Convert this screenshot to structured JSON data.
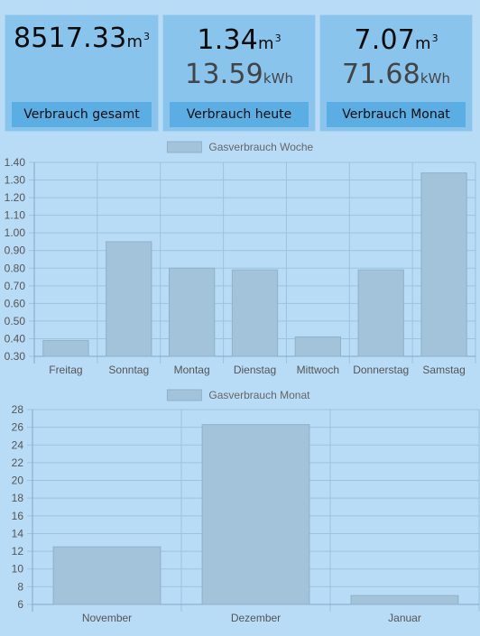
{
  "cards": [
    {
      "value": "8517.33",
      "unit": "m",
      "unit_sup": "3",
      "secondary_value": "",
      "secondary_unit": "",
      "label": "Verbrauch gesamt"
    },
    {
      "value": "1.34",
      "unit": "m",
      "unit_sup": "3",
      "secondary_value": "13.59",
      "secondary_unit": "kWh",
      "label": "Verbrauch heute"
    },
    {
      "value": "7.07",
      "unit": "m",
      "unit_sup": "3",
      "secondary_value": "71.68",
      "secondary_unit": "kWh",
      "label": "Verbrauch Monat"
    }
  ],
  "colors": {
    "background": "#b8dcf6",
    "card": "#88c4ec",
    "card_label": "#5aaee3",
    "bar_fill": "#a3c3da",
    "bar_stroke": "#8fb1c9",
    "grid": "#9cc3dc"
  },
  "chart_data": [
    {
      "type": "bar",
      "legend": "Gasverbrauch Woche",
      "categories": [
        "Freitag",
        "Sonntag",
        "Montag",
        "Dienstag",
        "Mittwoch",
        "Donnerstag",
        "Samstag"
      ],
      "values": [
        0.39,
        0.95,
        0.8,
        0.79,
        0.41,
        0.79,
        1.34
      ],
      "ylim": [
        0.3,
        1.4
      ],
      "yticks": [
        "0.30",
        "0.40",
        "0.50",
        "0.60",
        "0.70",
        "0.80",
        "0.90",
        "1.00",
        "1.10",
        "1.20",
        "1.30",
        "1.40"
      ],
      "grid": true,
      "legend_position": "top"
    },
    {
      "type": "bar",
      "legend": "Gasverbrauch Monat",
      "categories": [
        "November",
        "Dezember",
        "Januar"
      ],
      "values": [
        12.5,
        26.3,
        7.0
      ],
      "ylim": [
        6,
        28
      ],
      "yticks": [
        "6",
        "8",
        "10",
        "12",
        "14",
        "16",
        "18",
        "20",
        "22",
        "24",
        "26",
        "28"
      ],
      "grid": true,
      "legend_position": "top"
    }
  ]
}
